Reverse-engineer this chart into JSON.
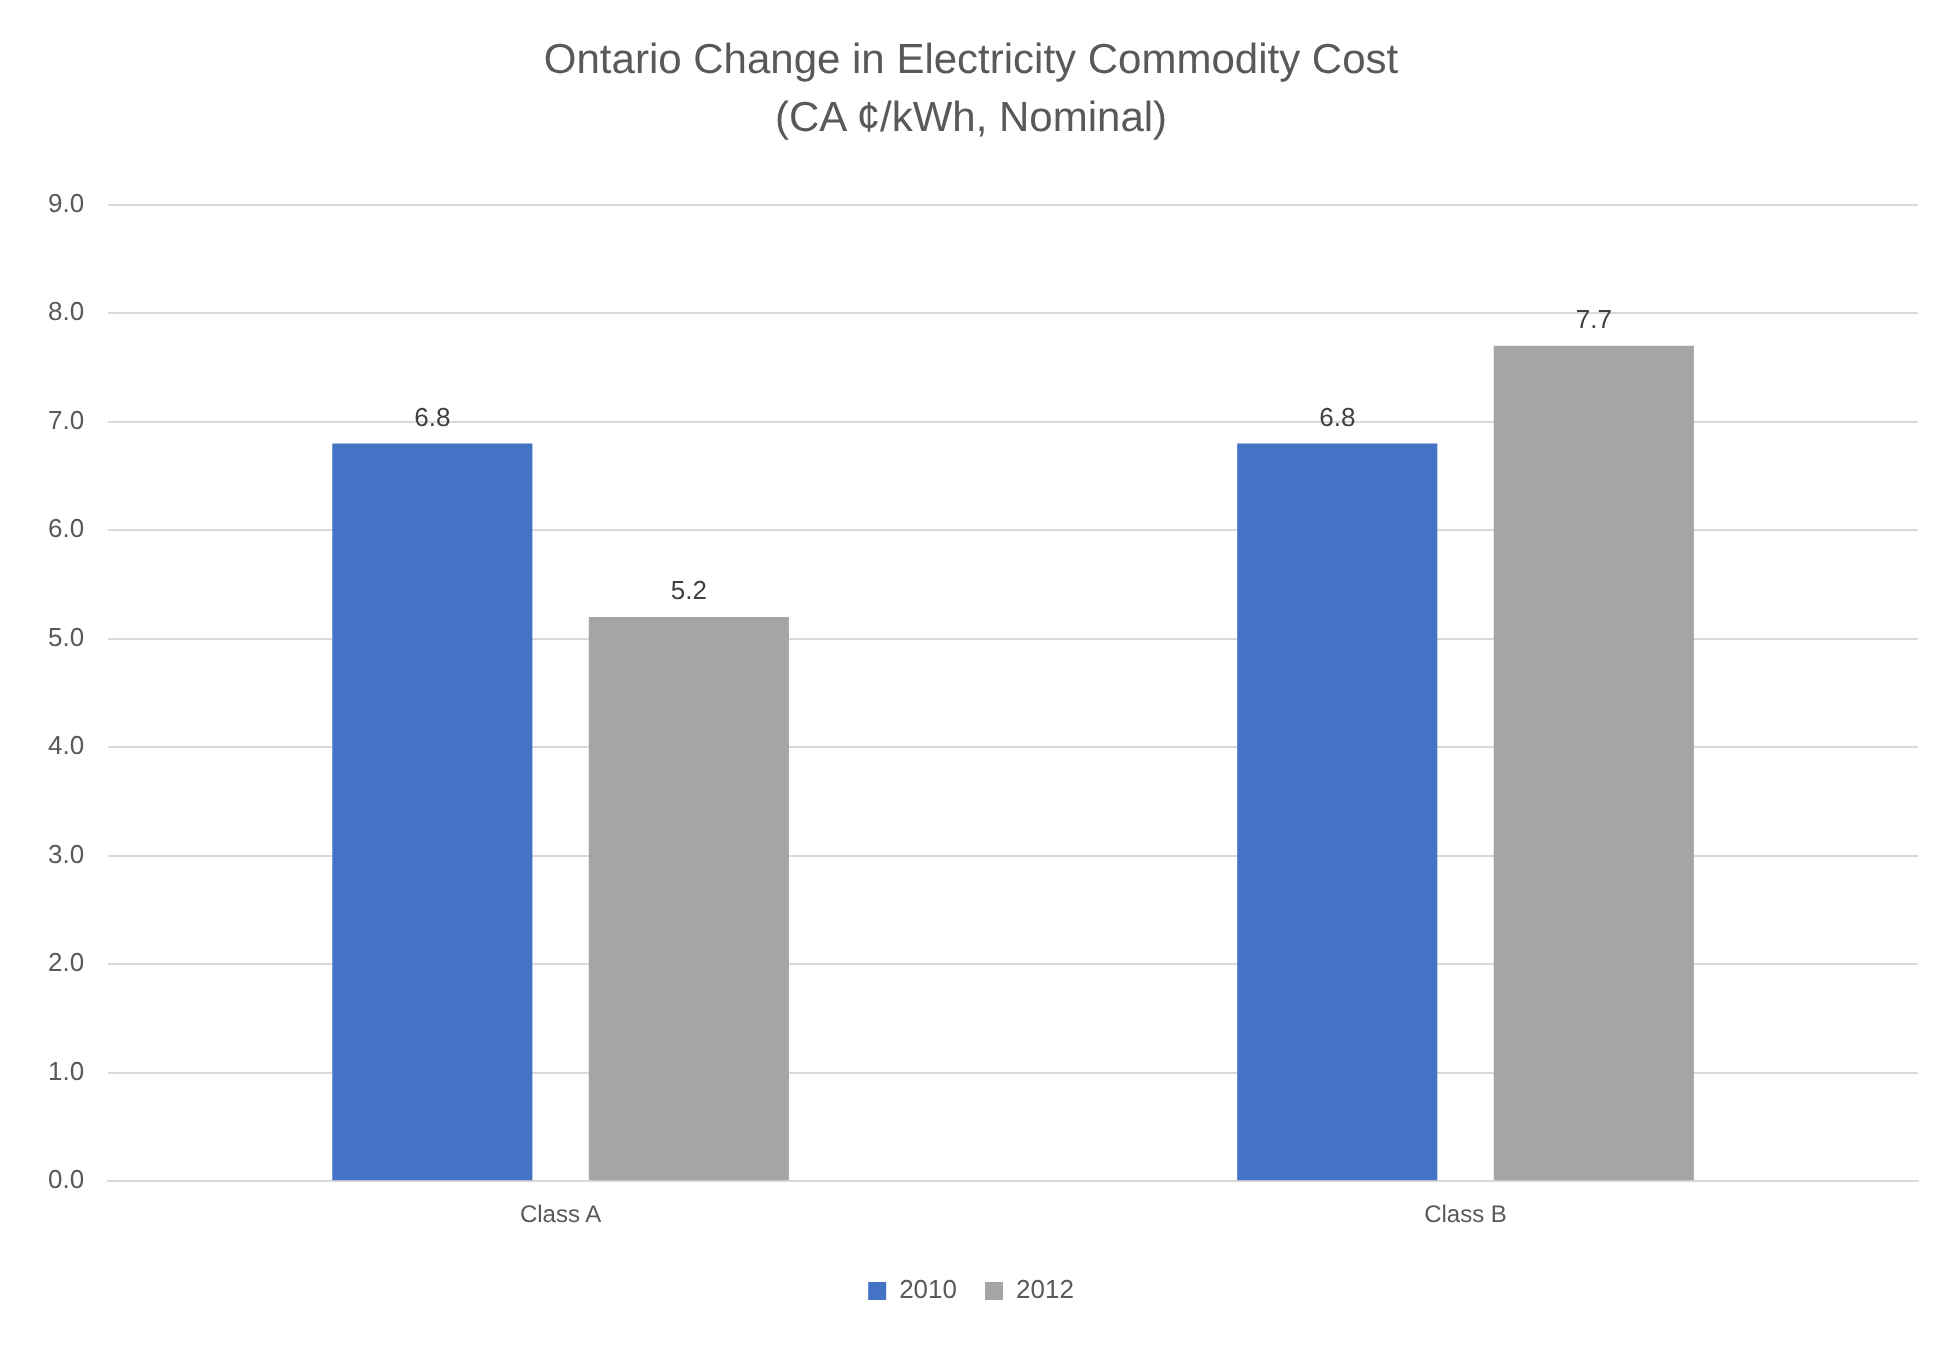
{
  "chart_data": {
    "type": "bar",
    "title": "Ontario Change in Electricity Commodity Cost",
    "subtitle": "(CA ¢/kWh, Nominal)",
    "categories": [
      "Class A",
      "Class B"
    ],
    "series": [
      {
        "name": "2010",
        "color": "#4472c4",
        "values": [
          6.8,
          6.8
        ]
      },
      {
        "name": "2012",
        "color": "#a5a5a5",
        "values": [
          5.2,
          7.7
        ]
      }
    ],
    "ylim": [
      0,
      9
    ],
    "yticks": [
      {
        "value": 0,
        "label": "0.0"
      },
      {
        "value": 1,
        "label": "1.0"
      },
      {
        "value": 2,
        "label": "2.0"
      },
      {
        "value": 3,
        "label": "3.0"
      },
      {
        "value": 4,
        "label": "4.0"
      },
      {
        "value": 5,
        "label": "5.0"
      },
      {
        "value": 6,
        "label": "6.0"
      },
      {
        "value": 7,
        "label": "7.0"
      },
      {
        "value": 8,
        "label": "8.0"
      },
      {
        "value": 9,
        "label": "9.0"
      }
    ],
    "grid": "y",
    "legend": "bottom",
    "data_labels": true
  }
}
